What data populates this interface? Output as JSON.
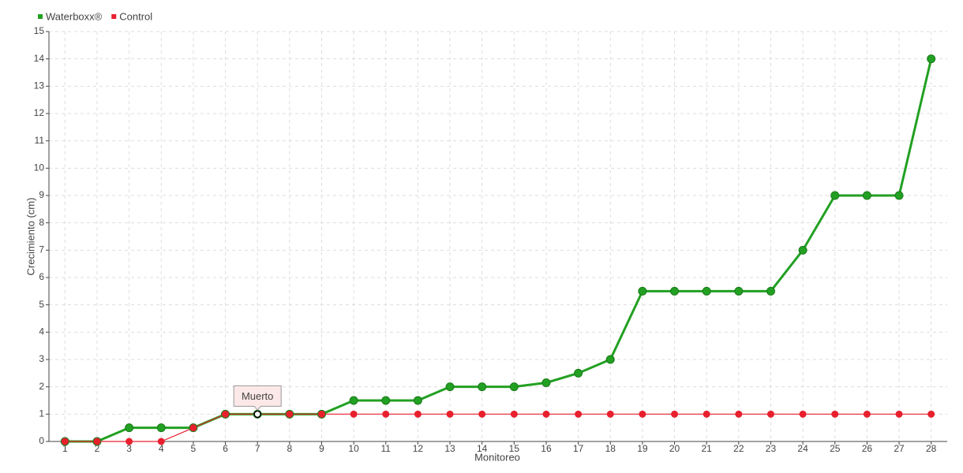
{
  "chart_data": {
    "type": "line",
    "x_label": "Monitoreo",
    "y_label": "Crecimiento (cm)",
    "categories": [
      "1",
      "2",
      "3",
      "4",
      "5",
      "6",
      "7",
      "8",
      "9",
      "10",
      "11",
      "12",
      "13",
      "14",
      "15",
      "16",
      "17",
      "18",
      "19",
      "20",
      "21",
      "22",
      "23",
      "24",
      "25",
      "26",
      "27",
      "28"
    ],
    "series": [
      {
        "name": "Waterboxx®",
        "color": "#22a022",
        "values": [
          0,
          0,
          0.5,
          0.5,
          0.5,
          1,
          1,
          1,
          1,
          1.5,
          1.5,
          1.5,
          2,
          2,
          2,
          2.15,
          2.5,
          3,
          5.5,
          5.5,
          5.5,
          5.5,
          5.5,
          7,
          9,
          9,
          9,
          14
        ]
      },
      {
        "name": "Control",
        "color": "#e8202e",
        "values": [
          0,
          0,
          0,
          0,
          0.5,
          1,
          1,
          1,
          1,
          1,
          1,
          1,
          1,
          1,
          1,
          1,
          1,
          1,
          1,
          1,
          1,
          1,
          1,
          1,
          1,
          1,
          1,
          1
        ]
      }
    ],
    "annotations": [
      {
        "text": "Muerto",
        "series": "Control",
        "category": "7"
      }
    ],
    "ylim": [
      0,
      15
    ],
    "yticks": [
      0,
      1,
      2,
      3,
      4,
      5,
      6,
      7,
      8,
      9,
      10,
      11,
      12,
      13,
      14,
      15
    ],
    "grid": true,
    "legend": "top-left"
  }
}
